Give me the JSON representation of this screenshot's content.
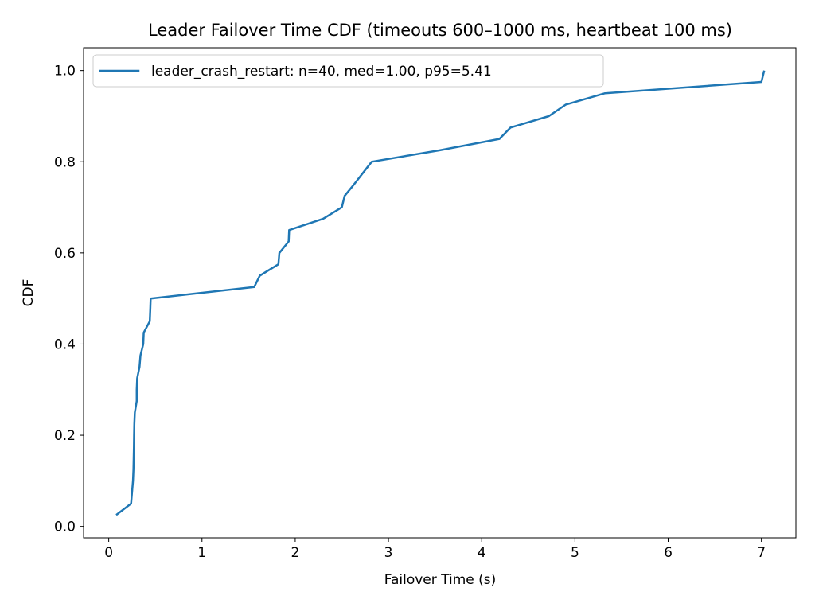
{
  "chart_data": {
    "type": "line",
    "title": "Leader Failover Time CDF (timeouts 600–1000 ms, heartbeat 100 ms)",
    "xlabel": "Failover Time (s)",
    "ylabel": "CDF",
    "xlim": [
      -0.27,
      7.37
    ],
    "ylim": [
      -0.025,
      1.05
    ],
    "xticks": [
      0,
      1,
      2,
      3,
      4,
      5,
      6,
      7
    ],
    "xtick_labels": [
      "0",
      "1",
      "2",
      "3",
      "4",
      "5",
      "6",
      "7"
    ],
    "yticks": [
      0.0,
      0.2,
      0.4,
      0.6,
      0.8,
      1.0
    ],
    "ytick_labels": [
      "0.0",
      "0.2",
      "0.4",
      "0.6",
      "0.8",
      "1.0"
    ],
    "grid": false,
    "legend_position": "top-left",
    "series": [
      {
        "name": "leader_crash_restart: n=40, med=1.00, p95=5.41",
        "color": "#1f77b4",
        "points": [
          [
            0.08,
            0.025
          ],
          [
            0.24,
            0.05
          ],
          [
            0.25,
            0.075
          ],
          [
            0.26,
            0.1
          ],
          [
            0.265,
            0.125
          ],
          [
            0.268,
            0.15
          ],
          [
            0.27,
            0.175
          ],
          [
            0.272,
            0.2
          ],
          [
            0.275,
            0.225
          ],
          [
            0.28,
            0.25
          ],
          [
            0.3,
            0.275
          ],
          [
            0.3,
            0.3
          ],
          [
            0.305,
            0.325
          ],
          [
            0.33,
            0.35
          ],
          [
            0.34,
            0.375
          ],
          [
            0.37,
            0.4
          ],
          [
            0.375,
            0.425
          ],
          [
            0.44,
            0.45
          ],
          [
            0.445,
            0.475
          ],
          [
            0.45,
            0.5
          ],
          [
            1.56,
            0.525
          ],
          [
            1.62,
            0.55
          ],
          [
            1.82,
            0.575
          ],
          [
            1.83,
            0.6
          ],
          [
            1.93,
            0.625
          ],
          [
            1.935,
            0.65
          ],
          [
            2.3,
            0.675
          ],
          [
            2.5,
            0.7
          ],
          [
            2.53,
            0.725
          ],
          [
            2.63,
            0.75
          ],
          [
            2.82,
            0.8
          ],
          [
            3.55,
            0.825
          ],
          [
            4.19,
            0.85
          ],
          [
            4.31,
            0.875
          ],
          [
            4.72,
            0.9
          ],
          [
            4.9,
            0.925
          ],
          [
            5.32,
            0.95
          ],
          [
            7.0,
            0.975
          ],
          [
            7.03,
            1.0
          ]
        ]
      }
    ]
  }
}
